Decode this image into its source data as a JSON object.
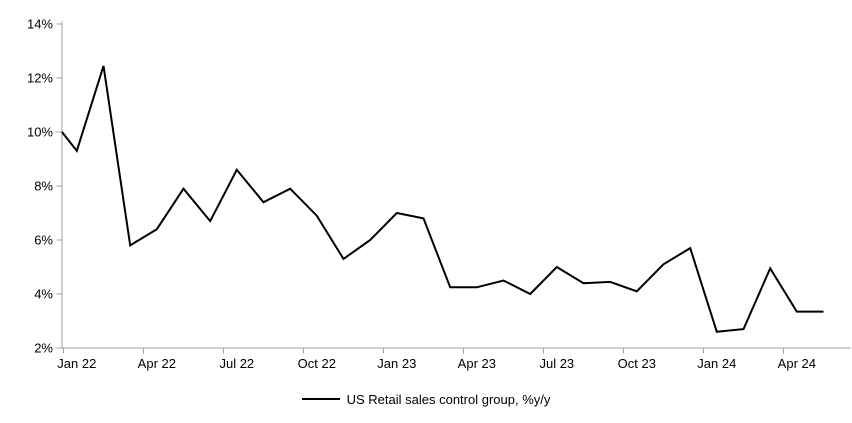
{
  "chart_data": {
    "type": "line",
    "title": "",
    "grid": "off",
    "legend_position": "bottom-center",
    "axis_color": "#a0a0a0",
    "ylim": [
      2,
      14
    ],
    "y_step": 2,
    "y_tick_labels": [
      "2%",
      "4%",
      "6%",
      "8%",
      "10%",
      "12%",
      "14%"
    ],
    "x_tick_labels": [
      "Jan 22",
      "Apr 22",
      "Jul 22",
      "Oct 22",
      "Jan 23",
      "Apr 23",
      "Jul 23",
      "Oct 23",
      "Jan 24",
      "Apr 24"
    ],
    "months": [
      "Jan 22",
      "Feb 22",
      "Mar 22",
      "Apr 22",
      "May 22",
      "Jun 22",
      "Jul 22",
      "Aug 22",
      "Sep 22",
      "Oct 22",
      "Nov 22",
      "Dec 22",
      "Jan 23",
      "Feb 23",
      "Mar 23",
      "Apr 23",
      "May 23",
      "Jun 23",
      "Jul 23",
      "Aug 23",
      "Sep 23",
      "Oct 23",
      "Nov 23",
      "Dec 23",
      "Jan 24",
      "Feb 24",
      "Mar 24",
      "Apr 24",
      "May 24"
    ],
    "series": [
      {
        "name": "US Retail sales control group, %y/y",
        "color": "#000000",
        "left_edge_entry_pct": 10.0,
        "values": [
          9.3,
          12.45,
          5.8,
          6.4,
          7.9,
          6.7,
          8.6,
          7.4,
          7.9,
          6.9,
          5.3,
          6.0,
          7.0,
          6.8,
          4.25,
          4.25,
          4.5,
          4.0,
          5.0,
          4.4,
          4.45,
          4.1,
          5.1,
          5.7,
          2.6,
          2.7,
          4.95,
          3.35,
          3.35
        ]
      }
    ]
  }
}
